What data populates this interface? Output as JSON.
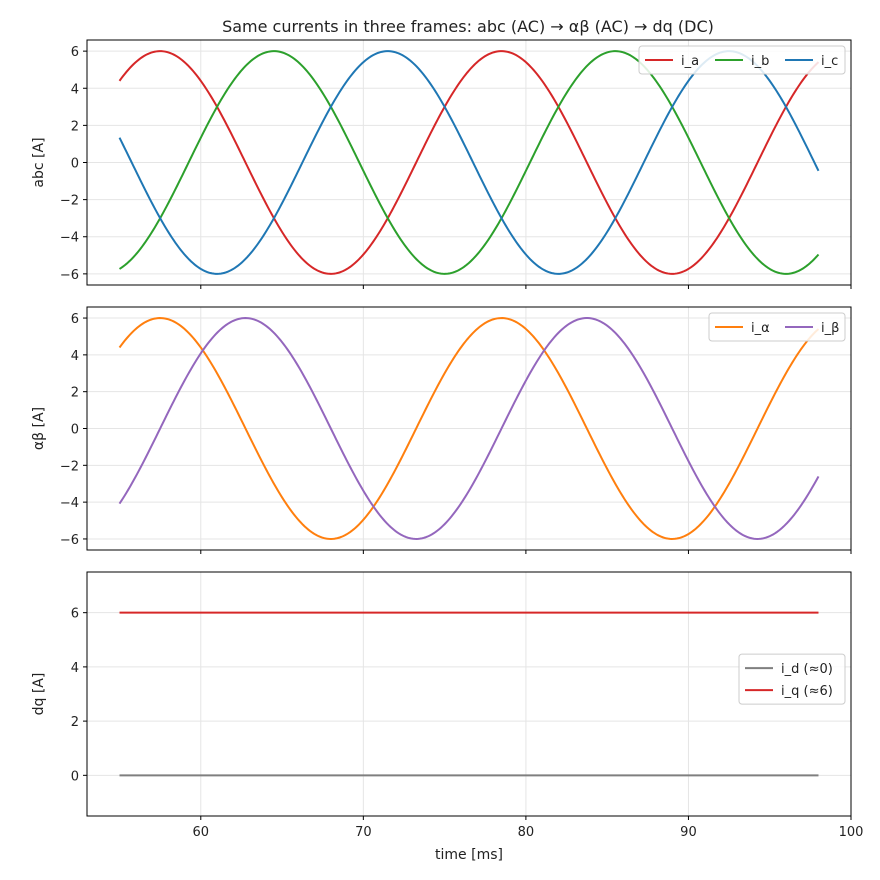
{
  "title": "Same currents in three frames: abc (AC) → αβ (AC) → dq (DC)",
  "chart_data": [
    {
      "type": "line",
      "panel": "abc",
      "ylabel": "abc [A]",
      "xlim": [
        53,
        100
      ],
      "ylim": [
        -6.6,
        6.6
      ],
      "yticks": [
        -6,
        -4,
        -2,
        0,
        2,
        4,
        6
      ],
      "ytick_labels": [
        "−6",
        "−4",
        "−2",
        "0",
        "2",
        "4",
        "6"
      ],
      "grid": true,
      "legend": "top-right",
      "legend_columns": 3,
      "signal": {
        "amplitude": 6,
        "period_ms": 21,
        "peak_time_ms": 57.5,
        "t_start": 55,
        "t_end": 98
      },
      "series": [
        {
          "name": "i_a",
          "color": "#d62728",
          "phase_deg": 0
        },
        {
          "name": "i_b",
          "color": "#2ca02c",
          "phase_deg": -120
        },
        {
          "name": "i_c",
          "color": "#1f77b4",
          "phase_deg": 120
        }
      ]
    },
    {
      "type": "line",
      "panel": "alphabeta",
      "ylabel": "αβ [A]",
      "xlim": [
        53,
        100
      ],
      "ylim": [
        -6.6,
        6.6
      ],
      "yticks": [
        -6,
        -4,
        -2,
        0,
        2,
        4,
        6
      ],
      "ytick_labels": [
        "−6",
        "−4",
        "−2",
        "0",
        "2",
        "4",
        "6"
      ],
      "grid": true,
      "legend": "top-right",
      "legend_columns": 2,
      "signal": {
        "amplitude": 6,
        "period_ms": 21,
        "peak_time_ms": 57.5,
        "t_start": 55,
        "t_end": 98
      },
      "series": [
        {
          "name": "i_α",
          "color": "#ff7f0e",
          "phase_deg": 0
        },
        {
          "name": "i_β",
          "color": "#9467bd",
          "phase_deg": -90
        }
      ]
    },
    {
      "type": "line",
      "panel": "dq",
      "ylabel": "dq [A]",
      "xlabel": "time [ms]",
      "xlim": [
        53,
        100
      ],
      "ylim": [
        -1.5,
        7.5
      ],
      "yticks": [
        0,
        2,
        4,
        6
      ],
      "ytick_labels": [
        "0",
        "2",
        "4",
        "6"
      ],
      "xticks": [
        60,
        70,
        80,
        90,
        100
      ],
      "xtick_labels": [
        "60",
        "70",
        "80",
        "90",
        "100"
      ],
      "grid": true,
      "legend": "center-right",
      "legend_columns": 1,
      "signal": {
        "t_start": 55,
        "t_end": 98
      },
      "series": [
        {
          "name": "i_d (≈0)",
          "color": "#7f7f7f",
          "constant": 0
        },
        {
          "name": "i_q (≈6)",
          "color": "#d62728",
          "constant": 6
        }
      ]
    }
  ]
}
